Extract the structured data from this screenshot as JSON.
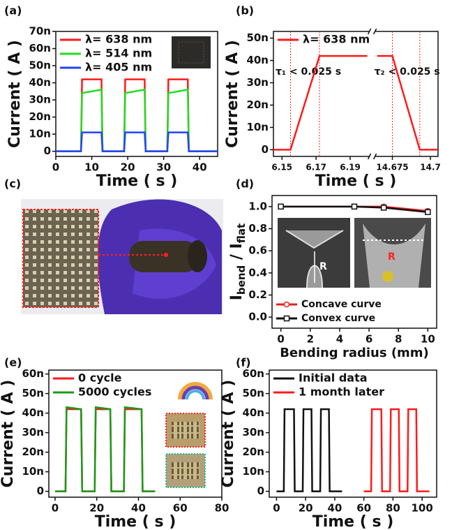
{
  "chart_data": [
    {
      "type": "line",
      "panel": "(a)",
      "xlabel": "Time ( s )",
      "ylabel": "Current ( A )",
      "x": [
        0,
        7,
        7.3,
        12.7,
        13,
        19,
        19.3,
        24.7,
        25,
        31,
        31.3,
        36.7,
        37,
        45
      ],
      "series": [
        {
          "name": "λ= 638 nm",
          "color": "#ff1a1a",
          "values": [
            0,
            0,
            42,
            42,
            0,
            0,
            42,
            42,
            0,
            0,
            42,
            42,
            0,
            0
          ]
        },
        {
          "name": "λ= 514 nm",
          "color": "#22dd22",
          "values": [
            0,
            0,
            34,
            36,
            0,
            0,
            34,
            36,
            0,
            0,
            34,
            36,
            0,
            0
          ]
        },
        {
          "name": "λ= 405 nm",
          "color": "#2244ff",
          "values": [
            0,
            0,
            11,
            11,
            0,
            0,
            11,
            11,
            0,
            0,
            11,
            11,
            0,
            0
          ]
        }
      ],
      "xlim": [
        0,
        45
      ],
      "xticks": [
        0,
        10,
        20,
        30,
        40
      ],
      "ylim": [
        -3,
        70
      ],
      "yticks": [
        0,
        {
          "value": 10,
          "label": "10n"
        },
        {
          "value": 20,
          "label": "20n"
        },
        {
          "value": 30,
          "label": "30n"
        },
        {
          "value": 40,
          "label": "40n"
        },
        {
          "value": 50,
          "label": "50n"
        },
        {
          "value": 60,
          "label": "60n"
        },
        {
          "value": 70,
          "label": "70n"
        }
      ],
      "legend": "upper left"
    },
    {
      "type": "line",
      "panel": "(b)",
      "xlabel": "Time ( s )",
      "ylabel": "Current ( A )",
      "x": [
        6.145,
        6.155,
        6.172,
        6.2,
        null,
        14.665,
        14.675,
        14.693,
        14.705
      ],
      "series": [
        {
          "name": "λ= 638 nm",
          "color": "#ff1a1a",
          "values": [
            0,
            0,
            42,
            42,
            null,
            42,
            42,
            0,
            0
          ]
        }
      ],
      "xlim": [
        6.145,
        14.705
      ],
      "x_break": [
        6.2,
        14.665
      ],
      "xticks": [
        6.15,
        6.17,
        6.19,
        14.675,
        14.7
      ],
      "ylim": [
        -3,
        53
      ],
      "yticks": [
        0,
        {
          "value": 10,
          "label": "10n"
        },
        {
          "value": 20,
          "label": "20n"
        },
        {
          "value": 30,
          "label": "30n"
        },
        {
          "value": 40,
          "label": "40n"
        },
        {
          "value": 50,
          "label": "50n"
        }
      ],
      "vlines": [
        6.155,
        6.172,
        14.675,
        14.693
      ],
      "annotations": [
        "τ₁ < 0.025 s",
        "τ₂ < 0.025 s"
      ],
      "legend": "upper left"
    },
    {
      "type": "image",
      "panel": "(c)"
    },
    {
      "type": "line",
      "panel": "(d)",
      "xlabel": "Bending radius (mm)",
      "ylabel": [
        "I",
        "bend",
        " / I",
        "flat"
      ],
      "x": [
        0,
        5,
        7,
        10
      ],
      "series": [
        {
          "name": "Concave curve",
          "color": "#e8201a",
          "marker": "circle",
          "values": [
            1.0,
            1.0,
            1.0,
            0.96
          ]
        },
        {
          "name": "Convex  curve",
          "color": "#111111",
          "marker": "square",
          "values": [
            1.0,
            1.0,
            0.99,
            0.95
          ]
        }
      ],
      "xlim": [
        -0.6,
        10.6
      ],
      "xticks": [
        0,
        2,
        4,
        6,
        8,
        10
      ],
      "ylim": [
        -0.1,
        1.1
      ],
      "yticks": [
        {
          "value": 0,
          "label": "0.0"
        },
        0.2,
        0.4,
        0.6,
        0.8,
        {
          "value": 1,
          "label": "1.0"
        }
      ],
      "inset_labels": [
        "R",
        "R"
      ],
      "legend": "lower left"
    },
    {
      "type": "line",
      "panel": "(e)",
      "xlabel": "Time ( s )",
      "ylabel": "Current ( A )",
      "x": [
        0,
        5,
        5.5,
        12.5,
        13,
        19,
        19.5,
        26.5,
        27,
        33,
        33.5,
        41.5,
        42,
        48
      ],
      "series": [
        {
          "name": "0   cycle",
          "color": "#ff1a1a",
          "values": [
            0,
            0,
            42,
            42,
            0,
            0,
            42,
            42,
            0,
            0,
            42,
            42,
            0,
            0
          ]
        },
        {
          "name": "5000 cycles",
          "color": "#1a9a1a",
          "values": [
            0,
            0,
            43,
            42,
            0,
            0,
            43,
            42,
            0,
            0,
            43,
            42,
            0,
            0
          ]
        }
      ],
      "xlim": [
        -3,
        80
      ],
      "xticks": [
        0,
        20,
        40,
        60,
        80
      ],
      "ylim": [
        -3,
        62
      ],
      "yticks": [
        0,
        {
          "value": 10,
          "label": "10n"
        },
        {
          "value": 20,
          "label": "20n"
        },
        {
          "value": 30,
          "label": "30n"
        },
        {
          "value": 40,
          "label": "40n"
        },
        {
          "value": 50,
          "label": "50n"
        },
        {
          "value": 60,
          "label": "60n"
        }
      ],
      "legend": "upper left"
    },
    {
      "type": "line",
      "panel": "(f)",
      "xlabel": "Time ( s )",
      "ylabel": "Current ( A )",
      "series": [
        {
          "name": "Initial data",
          "color": "#111111",
          "x": [
            0,
            5,
            5.5,
            12,
            12.5,
            18,
            18.5,
            24,
            24.5,
            30,
            30.5,
            36,
            36.5,
            45
          ],
          "values": [
            0,
            0,
            42,
            42,
            0,
            0,
            42,
            42,
            0,
            0,
            42,
            42,
            0,
            0
          ]
        },
        {
          "name": "1 month later",
          "color": "#ff1a1a",
          "x": [
            60,
            65,
            65.5,
            72,
            72.5,
            78,
            78.5,
            84,
            84.5,
            90,
            90.5,
            96,
            96.5,
            105
          ],
          "values": [
            0,
            0,
            42,
            42,
            0,
            0,
            42,
            42,
            0,
            0,
            42,
            42,
            0,
            0
          ]
        }
      ],
      "xlim": [
        -5,
        110
      ],
      "xticks": [
        0,
        20,
        40,
        60,
        80,
        100
      ],
      "ylim": [
        -3,
        62
      ],
      "yticks": [
        0,
        {
          "value": 10,
          "label": "10n"
        },
        {
          "value": 20,
          "label": "20n"
        },
        {
          "value": 30,
          "label": "30n"
        },
        {
          "value": 40,
          "label": "40n"
        },
        {
          "value": 50,
          "label": "50n"
        },
        {
          "value": 60,
          "label": "60n"
        }
      ],
      "legend": "upper left"
    }
  ]
}
